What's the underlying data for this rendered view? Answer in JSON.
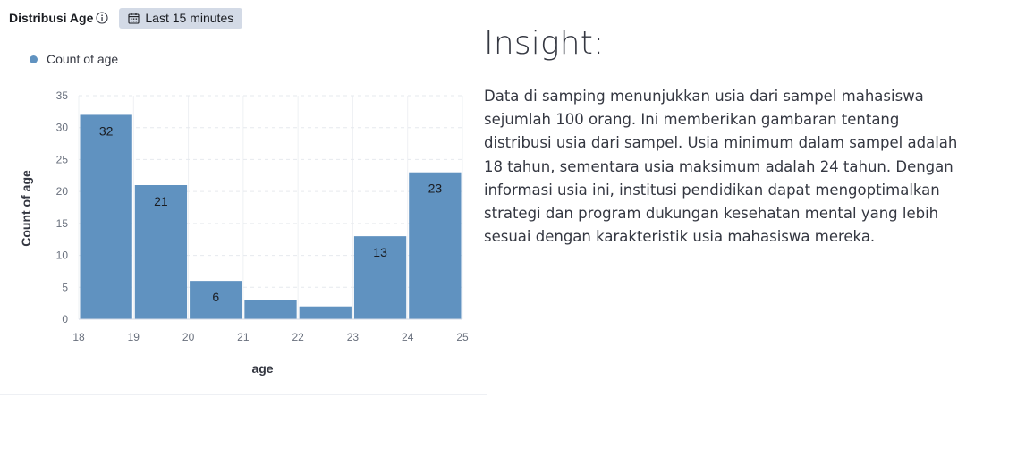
{
  "panel": {
    "title": "Distribusi Age",
    "time_range": "Last 15 minutes"
  },
  "insight": {
    "title": "Insight:",
    "text": "Data di samping menunjukkan usia dari sampel mahasiswa sejumlah 100 orang. Ini memberikan gambaran tentang distribusi usia dari sampel. Usia minimum dalam sampel adalah 18 tahun, sementara usia maksimum adalah 24 tahun. Dengan informasi usia ini, institusi pendidikan dapat mengoptimalkan strategi dan program dukungan kesehatan mental yang lebih sesuai dengan karakteristik usia mahasiswa mereka."
  },
  "colors": {
    "bar": "#6092c0",
    "badge": "#d3dae6",
    "text": "#343741"
  },
  "icons": [
    "info-icon",
    "calendar-icon"
  ],
  "chart_data": {
    "type": "bar",
    "xlabel": "age",
    "ylabel": "Count of age",
    "legend": [
      "Count of age"
    ],
    "legend_position": "top-left",
    "x_ticks": [
      "18",
      "19",
      "20",
      "21",
      "22",
      "23",
      "24",
      "25"
    ],
    "y_ticks": [
      "0",
      "5",
      "10",
      "15",
      "20",
      "25",
      "30",
      "35"
    ],
    "ylim": [
      0,
      35
    ],
    "xlim": [
      18,
      25
    ],
    "grid": true,
    "bins": [
      {
        "start": 18,
        "end": 19,
        "value": 32,
        "label": "32"
      },
      {
        "start": 19,
        "end": 20,
        "value": 21,
        "label": "21"
      },
      {
        "start": 20,
        "end": 21,
        "value": 6,
        "label": "6"
      },
      {
        "start": 21,
        "end": 22,
        "value": 3,
        "label": ""
      },
      {
        "start": 22,
        "end": 23,
        "value": 2,
        "label": ""
      },
      {
        "start": 23,
        "end": 24,
        "value": 13,
        "label": "13"
      },
      {
        "start": 24,
        "end": 25,
        "value": 23,
        "label": "23"
      }
    ]
  }
}
